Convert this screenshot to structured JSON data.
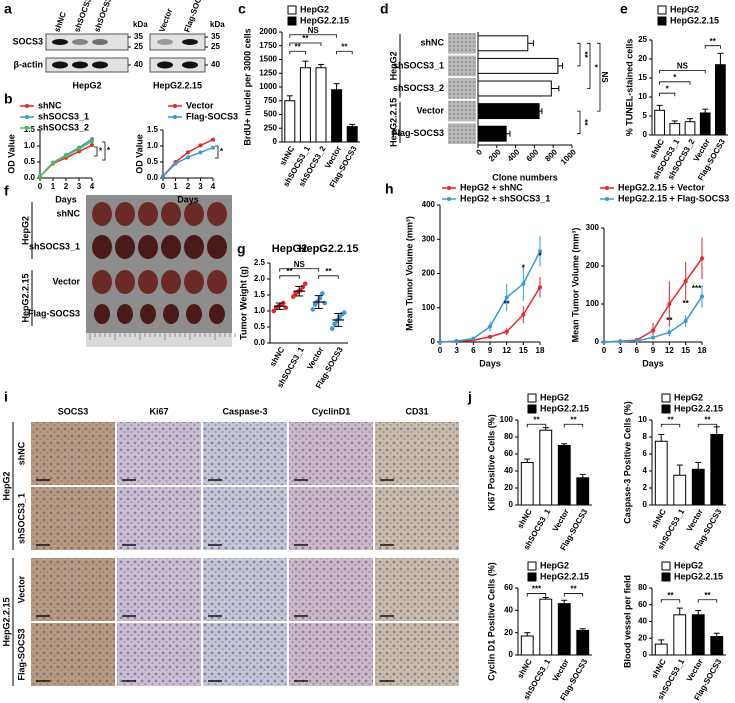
{
  "panel_labels": [
    "a",
    "b",
    "c",
    "d",
    "e",
    "f",
    "g",
    "h",
    "i",
    "j"
  ],
  "blots": [
    {
      "lanes": [
        "shNC",
        "shSOCS3_1",
        "shSOCS3_2"
      ],
      "unit": "kDa",
      "rows": [
        "SOCS3",
        "β-actin"
      ],
      "markers": [
        "35",
        "25",
        "40"
      ],
      "caption": "HepG2"
    },
    {
      "lanes": [
        "Vector",
        "Flag-SOCS3"
      ],
      "unit": "kDa",
      "markers": [
        "35",
        "25",
        "40"
      ],
      "caption": "HepG2.2.15"
    }
  ],
  "tumors": {
    "groups": [
      "HepG2",
      "HepG2.2.15"
    ],
    "rows": [
      "shNC",
      "shSOCS3_1",
      "Vector",
      "Flag-SOCS3"
    ]
  },
  "histology": {
    "columns": [
      "SOCS3",
      "Ki67",
      "Caspase-3",
      "CyclinD1",
      "CD31"
    ],
    "rows": [
      "shNC",
      "shSOCS3_1",
      "Vector",
      "Flag-SOCS3"
    ],
    "groups": [
      "HepG2",
      "HepG2.2.15"
    ]
  },
  "chart_data": [
    {
      "type": "line",
      "ylabel": "OD Value",
      "xlabel": "Days",
      "x": [
        0,
        1,
        2,
        3,
        4
      ],
      "xlim": [
        0,
        4
      ],
      "xticks": [
        0,
        1,
        2,
        3,
        4
      ],
      "ylim": [
        0,
        1.5
      ],
      "yticks": [
        {
          "value": 0,
          "label": "0.0"
        },
        0.5,
        {
          "value": 1,
          "label": "1.0"
        },
        1.5
      ],
      "series": [
        {
          "name": "shNC",
          "color": "#e8262b",
          "values": [
            0.05,
            0.45,
            0.63,
            0.83,
            1.03
          ]
        },
        {
          "name": "shSOCS3_1",
          "color": "#3a9ad9",
          "values": [
            0.05,
            0.48,
            0.72,
            0.95,
            1.22
          ]
        },
        {
          "name": "shSOCS3_2",
          "color": "#4cc24c",
          "values": [
            0.05,
            0.47,
            0.69,
            0.91,
            1.15
          ]
        }
      ],
      "annotations": [
        "*",
        "*"
      ]
    },
    {
      "type": "line",
      "ylabel": "OD Value",
      "xlabel": "Days",
      "x": [
        0,
        1,
        2,
        3,
        4
      ],
      "xlim": [
        0,
        4
      ],
      "xticks": [
        0,
        1,
        2,
        3,
        4
      ],
      "ylim": [
        0,
        1.5
      ],
      "yticks": [
        {
          "value": 0,
          "label": "0.0"
        },
        0.5,
        {
          "value": 1,
          "label": "1.0"
        },
        1.5
      ],
      "series": [
        {
          "name": "Vector",
          "color": "#e8262b",
          "values": [
            0.05,
            0.5,
            0.8,
            1.02,
            1.2
          ]
        },
        {
          "name": "Flag-SOCS3",
          "color": "#3a9ad9",
          "values": [
            0.05,
            0.45,
            0.65,
            0.8,
            0.95
          ]
        }
      ],
      "annotations": [
        "*"
      ]
    },
    {
      "type": "bar",
      "ylabel": "BrdU+ nuclei per 3000 cells",
      "categories": [
        "shNC",
        "shSOCS3_1",
        "shSOCS3_2",
        "Vector",
        "Flag-SOCS3"
      ],
      "values": [
        750,
        1350,
        1350,
        950,
        280
      ],
      "errors": [
        90,
        120,
        60,
        110,
        40
      ],
      "colors": [
        "#ffffff",
        "#ffffff",
        "#ffffff",
        "#000000",
        "#000000"
      ],
      "legend": [
        {
          "name": "HepG2",
          "color": "#ffffff"
        },
        {
          "name": "HepG2.2.15",
          "color": "#000000"
        }
      ],
      "ylim": [
        0,
        2000
      ],
      "yticks": [
        0,
        250,
        500,
        750,
        1000,
        1250,
        1500,
        1750,
        2000
      ],
      "annotations": [
        "NS",
        "**",
        "**",
        "**"
      ]
    },
    {
      "type": "hbar",
      "xlabel": "Clone numbers",
      "categories": [
        "shNC",
        "shSOCS3_1",
        "shSOCS3_2",
        "Vector",
        "Flag-SOCS3"
      ],
      "values": [
        530,
        850,
        780,
        650,
        300
      ],
      "errors": [
        60,
        50,
        80,
        30,
        40
      ],
      "colors": [
        "#ffffff",
        "#ffffff",
        "#ffffff",
        "#000000",
        "#000000"
      ],
      "groups": [
        "HepG2",
        "HepG2.2.15"
      ],
      "xlim": [
        0,
        1000
      ],
      "xticks": [
        0,
        200,
        400,
        600,
        800,
        1000
      ],
      "annotations": [
        "**",
        "*",
        "NS",
        "**"
      ]
    },
    {
      "type": "bar",
      "ylabel": "% TUNEL-stained cells",
      "categories": [
        "shNC",
        "shSOCS3_1",
        "shSOCS3_2",
        "Vector",
        "Flag-SOCS3"
      ],
      "values": [
        6.5,
        3,
        3.5,
        5.8,
        18.5
      ],
      "errors": [
        1.3,
        0.7,
        0.8,
        1,
        3
      ],
      "colors": [
        "#ffffff",
        "#ffffff",
        "#ffffff",
        "#000000",
        "#000000"
      ],
      "legend": [
        {
          "name": "HepG2",
          "color": "#ffffff"
        },
        {
          "name": "HepG2.2.15",
          "color": "#000000"
        }
      ],
      "ylim": [
        0,
        25
      ],
      "yticks": [
        0,
        5,
        10,
        15,
        20,
        25
      ],
      "annotations": [
        "NS",
        "*",
        "*",
        "**"
      ]
    },
    {
      "type": "strip",
      "ylabel": "Tumor Weight (g)",
      "categories": [
        "shNC",
        "shSOCS3_1",
        "Vector",
        "Flag-SOCS3"
      ],
      "groups": [
        {
          "name": "HepG2",
          "color": "#e8262b"
        },
        {
          "name": "HepG2.2.15",
          "color": "#3a9ad9"
        }
      ],
      "colors": [
        "#e8262b",
        "#e8262b",
        "#3a9ad9",
        "#3a9ad9"
      ],
      "points": [
        [
          1.0,
          1.1,
          1.15,
          1.2,
          1.25,
          1.1
        ],
        [
          1.45,
          1.55,
          1.6,
          1.65,
          1.75,
          1.85
        ],
        [
          1.05,
          1.2,
          1.3,
          1.4,
          1.55,
          1.25
        ],
        [
          0.45,
          0.6,
          0.7,
          0.8,
          0.9,
          0.95
        ]
      ],
      "means": [
        1.15,
        1.62,
        1.28,
        0.72
      ],
      "errors": [
        0.1,
        0.15,
        0.2,
        0.2
      ],
      "ylim": [
        0,
        2.5
      ],
      "yticks": [
        {
          "value": 0,
          "label": "0.0"
        },
        0.5,
        {
          "value": 1,
          "label": "1.0"
        },
        1.5,
        {
          "value": 2,
          "label": "2.0"
        },
        2.5
      ],
      "annotations": [
        "**",
        "NS",
        "**"
      ]
    },
    {
      "type": "line",
      "ylabel": "Mean Tumor Volume (mm³)",
      "xlabel": "Days",
      "x": [
        0,
        3,
        6,
        9,
        12,
        15,
        18
      ],
      "xlim": [
        0,
        18
      ],
      "xticks": [
        0,
        3,
        6,
        9,
        12,
        15,
        18
      ],
      "ylim": [
        0,
        400
      ],
      "yticks": [
        0,
        100,
        200,
        300,
        400
      ],
      "series": [
        {
          "name": "HepG2 + shNC",
          "color": "#e8262b",
          "values": [
            0,
            2,
            5,
            15,
            30,
            80,
            160
          ],
          "errors": [
            0,
            0,
            2,
            5,
            10,
            25,
            30
          ]
        },
        {
          "name": "HepG2 + shSOCS3_1",
          "color": "#3a9ad9",
          "values": [
            0,
            3,
            10,
            45,
            130,
            170,
            265
          ],
          "errors": [
            0,
            0,
            5,
            15,
            40,
            50,
            45
          ]
        }
      ],
      "annotations": [
        "**",
        "*",
        "*"
      ]
    },
    {
      "type": "line",
      "ylabel": "Mean Tumor Volume (mm³)",
      "xlabel": "Days",
      "x": [
        0,
        3,
        6,
        9,
        12,
        15,
        18
      ],
      "xlim": [
        0,
        18
      ],
      "xticks": [
        0,
        3,
        6,
        9,
        12,
        15,
        18
      ],
      "ylim": [
        0,
        300
      ],
      "yticks": [
        0,
        100,
        200,
        300
      ],
      "series": [
        {
          "name": "HepG2.2.15 + Vector",
          "color": "#e8262b",
          "values": [
            0,
            2,
            5,
            30,
            100,
            160,
            220
          ],
          "errors": [
            0,
            0,
            5,
            20,
            60,
            50,
            55
          ]
        },
        {
          "name": "HepG2.2.15 + Flag-SOCS3",
          "color": "#3a9ad9",
          "values": [
            0,
            1,
            3,
            12,
            25,
            55,
            120
          ],
          "errors": [
            0,
            0,
            2,
            6,
            10,
            15,
            30
          ]
        }
      ],
      "annotations": [
        "**",
        "**",
        "***"
      ]
    },
    {
      "type": "bar",
      "ylabel": "Ki67 Positive Cells (%)",
      "categories": [
        "shNC",
        "shSOCS3_1",
        "Vector",
        "Flag-SOCS3"
      ],
      "values": [
        50,
        88,
        70,
        32
      ],
      "errors": [
        4,
        3,
        2,
        4
      ],
      "colors": [
        "#ffffff",
        "#ffffff",
        "#000000",
        "#000000"
      ],
      "legend": [
        {
          "name": "HepG2",
          "color": "#ffffff"
        },
        {
          "name": "HepG2.2.15",
          "color": "#000000"
        }
      ],
      "ylim": [
        0,
        100
      ],
      "yticks": [
        0,
        20,
        40,
        60,
        80,
        100
      ],
      "annotations": [
        "**",
        "**"
      ]
    },
    {
      "type": "bar",
      "ylabel": "Caspase-3 Positive Cells (%)",
      "categories": [
        "shNC",
        "shSOCS3_1",
        "Vector",
        "Flag-SOCS3"
      ],
      "values": [
        7.5,
        3.5,
        4.2,
        8.3
      ],
      "errors": [
        0.8,
        1.2,
        0.8,
        0.9
      ],
      "colors": [
        "#ffffff",
        "#ffffff",
        "#000000",
        "#000000"
      ],
      "legend": [
        {
          "name": "HepG2",
          "color": "#ffffff"
        },
        {
          "name": "HepG2.2.15",
          "color": "#000000"
        }
      ],
      "ylim": [
        0,
        10
      ],
      "yticks": [
        0,
        2,
        4,
        6,
        8,
        10
      ],
      "annotations": [
        "**",
        "**"
      ]
    },
    {
      "type": "bar",
      "ylabel": "Cyclin D1 Positive Cells (%)",
      "categories": [
        "shNC",
        "shSOCS3_1",
        "Vector",
        "Flag-SOCS3"
      ],
      "values": [
        17,
        50,
        46,
        22
      ],
      "errors": [
        3,
        1.5,
        3,
        1.5
      ],
      "colors": [
        "#ffffff",
        "#ffffff",
        "#000000",
        "#000000"
      ],
      "legend": [
        {
          "name": "HepG2",
          "color": "#ffffff"
        },
        {
          "name": "HepG2.2.15",
          "color": "#000000"
        }
      ],
      "ylim": [
        0,
        60
      ],
      "yticks": [
        0,
        20,
        40,
        60
      ],
      "annotations": [
        "***",
        "**"
      ]
    },
    {
      "type": "bar",
      "ylabel": "Blood vessel per field",
      "categories": [
        "shNC",
        "shSOCS3_1",
        "Vector",
        "Flag-SOCS3"
      ],
      "values": [
        13,
        48,
        48,
        22
      ],
      "errors": [
        5,
        8,
        5,
        4
      ],
      "colors": [
        "#ffffff",
        "#ffffff",
        "#000000",
        "#000000"
      ],
      "legend": [
        {
          "name": "HepG2",
          "color": "#ffffff"
        },
        {
          "name": "HepG2.2.15",
          "color": "#000000"
        }
      ],
      "ylim": [
        0,
        80
      ],
      "yticks": [
        0,
        20,
        40,
        60,
        80
      ],
      "annotations": [
        "**",
        "**"
      ]
    }
  ]
}
